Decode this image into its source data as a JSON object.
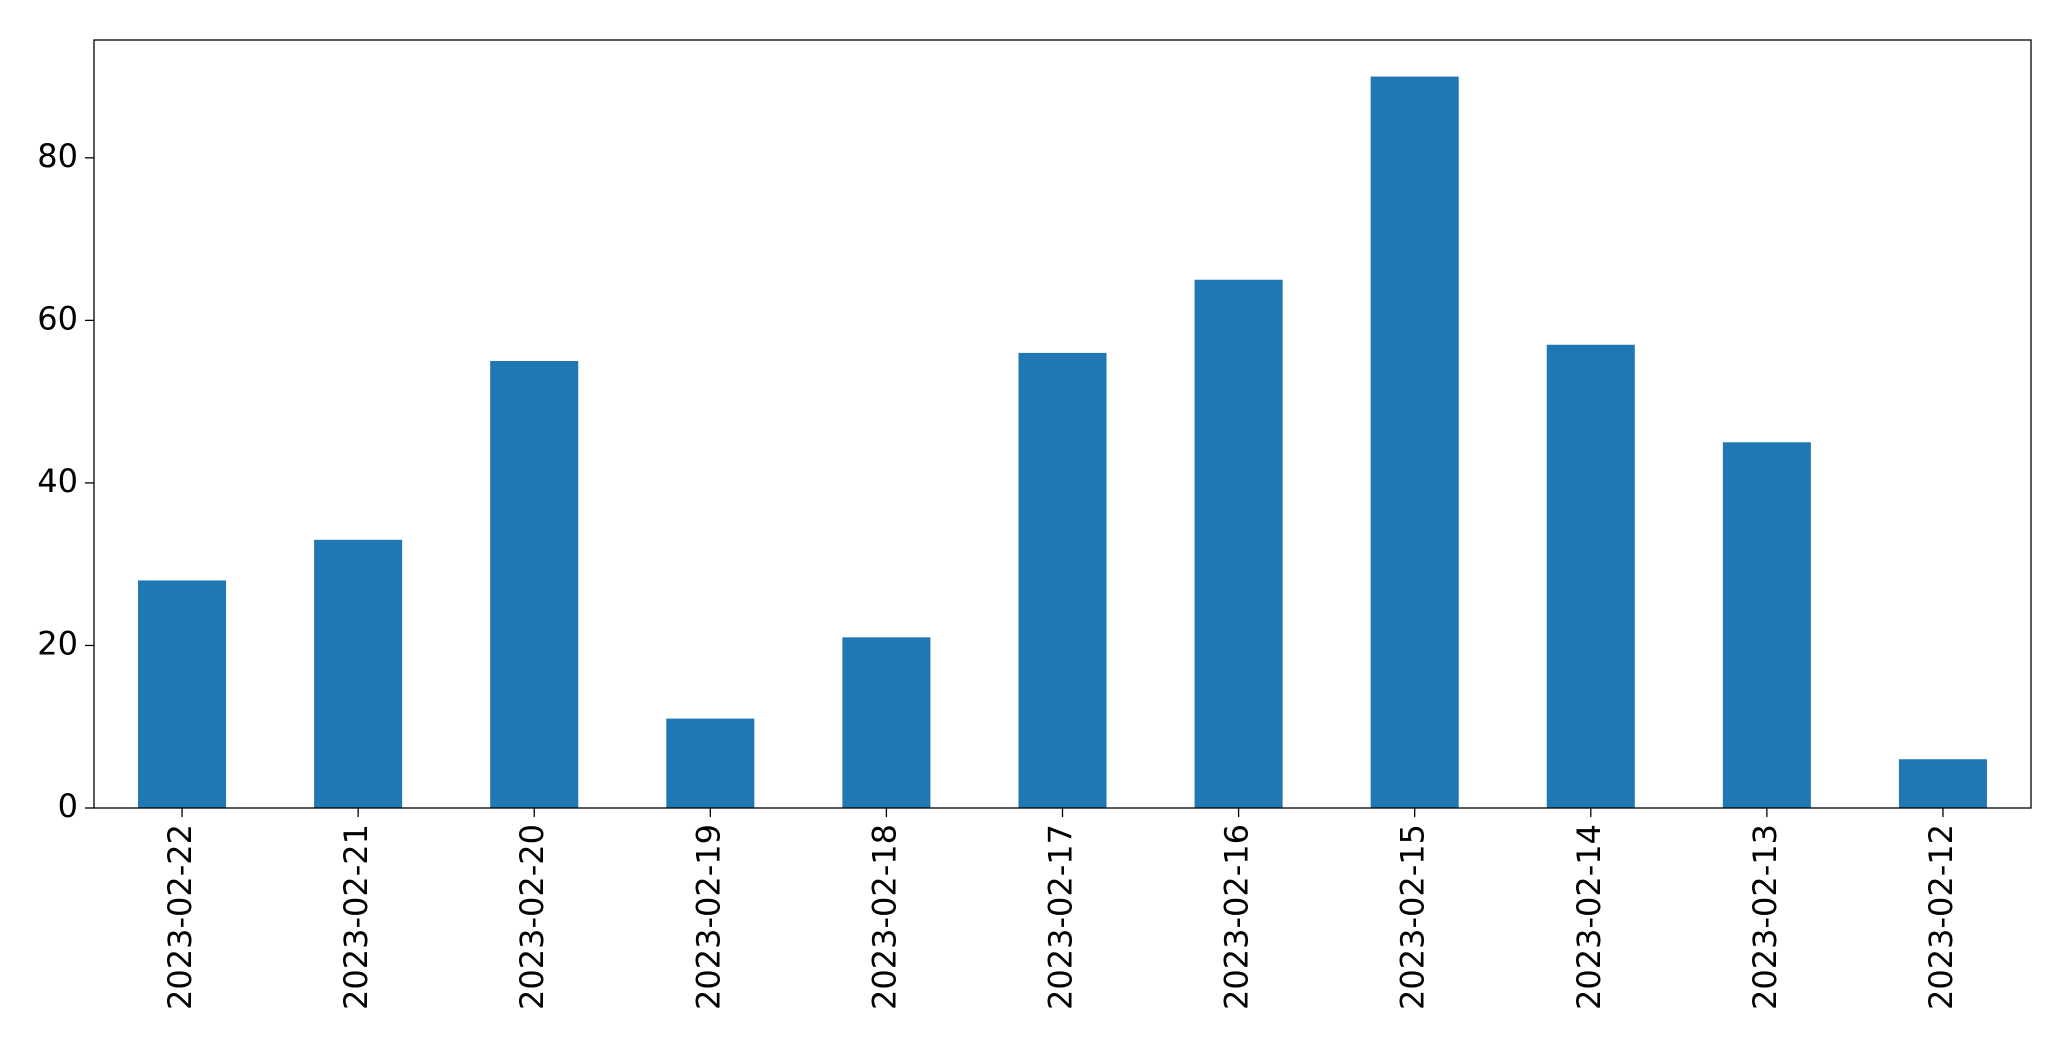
{
  "chart_data": {
    "type": "bar",
    "categories": [
      "2023-02-22",
      "2023-02-21",
      "2023-02-20",
      "2023-02-19",
      "2023-02-18",
      "2023-02-17",
      "2023-02-16",
      "2023-02-15",
      "2023-02-14",
      "2023-02-13",
      "2023-02-12"
    ],
    "values": [
      28,
      33,
      55,
      11,
      21,
      56,
      65,
      90,
      57,
      45,
      6
    ],
    "color": "#1f77b4",
    "ylim": [
      0,
      94.5
    ],
    "yticks": [
      0,
      20,
      40,
      60,
      80
    ],
    "grid": false
  }
}
